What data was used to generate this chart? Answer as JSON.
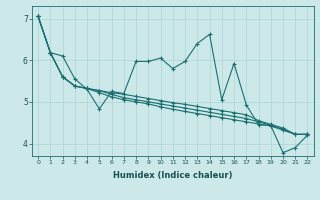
{
  "xlabel": "Humidex (Indice chaleur)",
  "background_color": "#cce8e8",
  "line_color": "#1a7070",
  "xlim": [
    -0.5,
    22.5
  ],
  "ylim": [
    3.7,
    7.3
  ],
  "yticks": [
    4,
    5,
    6,
    7
  ],
  "xticks": [
    0,
    1,
    2,
    3,
    4,
    5,
    6,
    7,
    8,
    9,
    10,
    11,
    12,
    13,
    14,
    15,
    16,
    17,
    18,
    19,
    20,
    21,
    22
  ],
  "line1_x": [
    0,
    1,
    2,
    3,
    4,
    5,
    6,
    7,
    8,
    9,
    10,
    11,
    12,
    13,
    14,
    15,
    16,
    17,
    18,
    19,
    20,
    21,
    22
  ],
  "line1_y": [
    7.05,
    6.18,
    6.1,
    5.55,
    5.3,
    4.83,
    5.25,
    5.2,
    5.97,
    5.97,
    6.05,
    5.8,
    5.97,
    6.4,
    6.62,
    5.05,
    5.92,
    4.93,
    4.45,
    4.43,
    3.78,
    3.9,
    4.2
  ],
  "line2_x": [
    0,
    1,
    2,
    3,
    4,
    5,
    6,
    7,
    8,
    9,
    10,
    11,
    12,
    13,
    14,
    15,
    16,
    17,
    18,
    19,
    20,
    21,
    22
  ],
  "line2_y": [
    7.05,
    6.18,
    5.6,
    5.38,
    5.32,
    5.27,
    5.22,
    5.18,
    5.13,
    5.08,
    5.03,
    4.98,
    4.94,
    4.89,
    4.84,
    4.79,
    4.74,
    4.69,
    4.55,
    4.46,
    4.37,
    4.22,
    4.22
  ],
  "line3_x": [
    0,
    1,
    2,
    3,
    4,
    5,
    6,
    7,
    8,
    9,
    10,
    11,
    12,
    13,
    14,
    15,
    16,
    17,
    18,
    19,
    20,
    21,
    22
  ],
  "line3_y": [
    7.05,
    6.18,
    5.6,
    5.38,
    5.32,
    5.27,
    5.18,
    5.1,
    5.05,
    5.0,
    4.95,
    4.9,
    4.85,
    4.8,
    4.75,
    4.7,
    4.65,
    4.6,
    4.52,
    4.44,
    4.34,
    4.22,
    4.22
  ],
  "line4_x": [
    0,
    1,
    2,
    3,
    4,
    5,
    6,
    7,
    8,
    9,
    10,
    11,
    12,
    13,
    14,
    15,
    16,
    17,
    18,
    19,
    20,
    21,
    22
  ],
  "line4_y": [
    7.05,
    6.18,
    5.6,
    5.38,
    5.32,
    5.22,
    5.12,
    5.05,
    5.0,
    4.95,
    4.88,
    4.82,
    4.77,
    4.72,
    4.67,
    4.62,
    4.57,
    4.52,
    4.47,
    4.42,
    4.32,
    4.22,
    4.22
  ]
}
